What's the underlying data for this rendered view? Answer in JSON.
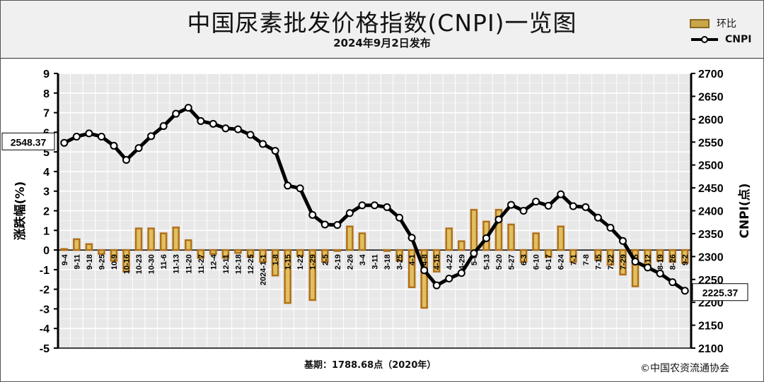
{
  "header": {
    "title": "中国尿素批发价格指数(CNPI)一览图",
    "subtitle": "2024年9月2日发布"
  },
  "legend": {
    "bar_label": "环比",
    "line_label": "CNPI"
  },
  "footer": {
    "base_note": "基期：1788.68点（2020年）",
    "copyright": "©中国农资流通协会"
  },
  "colors": {
    "bar_fill": "#e0c060",
    "bar_border": "#b0701a",
    "line": "#000000",
    "marker_fill": "#ffffff",
    "plot_bg": "#e8e8e8",
    "header_bg": "#f0f0f0"
  },
  "chart_data": {
    "type": "bar+line",
    "categories": [
      "9-4",
      "9-11",
      "9-18",
      "9-25",
      "10-9",
      "10-16",
      "10-23",
      "10-30",
      "11-6",
      "11-13",
      "11-20",
      "11-27",
      "12-4",
      "12-11",
      "12-18",
      "12-25",
      "2024-1-1",
      "1-8",
      "1-15",
      "1-22",
      "1-29",
      "2-5",
      "2-19",
      "2-26",
      "3-4",
      "3-11",
      "3-18",
      "3-25",
      "4-1",
      "4-8",
      "4-15",
      "4-22",
      "4-29",
      "5-6",
      "5-13",
      "5-20",
      "5-27",
      "6-3",
      "6-10",
      "6-17",
      "6-24",
      "7-1",
      "7-8",
      "7-15",
      "7-22",
      "7-29",
      "8-5",
      "8-12",
      "8-19",
      "8-26",
      "9-2"
    ],
    "series": [
      {
        "name": "环比",
        "axis": "left",
        "unit": "%",
        "values": [
          0.05,
          0.55,
          0.3,
          -0.2,
          -0.55,
          -1.1,
          1.1,
          1.1,
          0.85,
          1.15,
          0.5,
          -0.4,
          -0.2,
          -0.4,
          -0.15,
          -0.35,
          -0.6,
          -1.3,
          -2.7,
          -0.3,
          -2.55,
          -0.6,
          -0.05,
          1.2,
          0.85,
          0.0,
          -0.05,
          -0.55,
          -1.9,
          -2.95,
          -1.1,
          1.1,
          0.45,
          2.05,
          1.45,
          2.05,
          1.3,
          -0.6,
          0.85,
          -0.35,
          1.2,
          -0.6,
          0.0,
          -0.5,
          -0.75,
          -1.25,
          -1.85,
          -0.75,
          -0.55,
          -0.6,
          -0.65
        ]
      },
      {
        "name": "CNPI",
        "axis": "right",
        "unit": "点",
        "values": [
          2548.37,
          2562,
          2569,
          2562,
          2542,
          2511,
          2537,
          2563,
          2585,
          2612,
          2625,
          2596,
          2590,
          2580,
          2578,
          2566,
          2546,
          2531,
          2455,
          2449,
          2391,
          2370,
          2369,
          2395,
          2412,
          2412,
          2408,
          2385,
          2341,
          2270,
          2237,
          2252,
          2264,
          2307,
          2340,
          2381,
          2413,
          2400,
          2420,
          2411,
          2436,
          2410,
          2408,
          2385,
          2363,
          2334,
          2289,
          2276,
          2263,
          2244,
          2225.37
        ]
      }
    ],
    "callouts": {
      "first": "2548.37",
      "last": "2225.37"
    },
    "y_left": {
      "label": "涨跌幅(%)",
      "min": -5,
      "max": 9,
      "ticks": [
        9,
        8,
        7,
        6,
        5,
        4,
        3,
        2,
        1,
        0,
        -1,
        -2,
        -3,
        -4,
        -5
      ]
    },
    "y_right": {
      "label": "CNPI(点)",
      "min": 2100,
      "max": 2700,
      "ticks": [
        2700,
        2650,
        2600,
        2550,
        2500,
        2450,
        2400,
        2350,
        2300,
        2250,
        2200,
        2150,
        2100
      ]
    },
    "grid": true
  }
}
